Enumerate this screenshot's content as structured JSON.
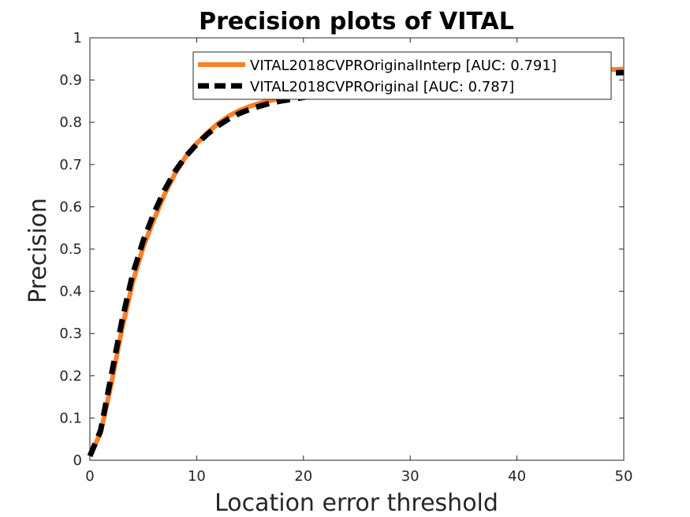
{
  "chart_data": {
    "type": "line",
    "title": "Precision plots of VITAL",
    "xlabel": "Location error threshold",
    "ylabel": "Precision",
    "xlim": [
      0,
      50
    ],
    "ylim": [
      0,
      1
    ],
    "xticks": [
      0,
      10,
      20,
      30,
      40,
      50
    ],
    "yticks": [
      0,
      0.1,
      0.2,
      0.3,
      0.4,
      0.5,
      0.6,
      0.7,
      0.8,
      0.9,
      1
    ],
    "xtick_labels": [
      "0",
      "10",
      "20",
      "30",
      "40",
      "50"
    ],
    "ytick_labels": [
      "0",
      "0.1",
      "0.2",
      "0.3",
      "0.4",
      "0.5",
      "0.6",
      "0.7",
      "0.8",
      "0.9",
      "1"
    ],
    "grid": false,
    "legend_position": "top-right",
    "x": [
      0,
      1,
      2,
      3,
      4,
      5,
      6,
      7,
      8,
      9,
      10,
      11,
      12,
      13,
      14,
      15,
      16,
      17,
      18,
      19,
      20,
      21,
      22,
      23,
      24,
      25,
      26,
      27,
      28,
      29,
      30,
      31,
      32,
      33,
      34,
      35,
      36,
      37,
      38,
      39,
      40,
      41,
      42,
      43,
      44,
      45,
      46,
      47,
      48,
      49,
      50
    ],
    "series": [
      {
        "name": "VITAL2018CVPROriginalInterp [AUC: 0.791]",
        "color": "#ff7f27",
        "style": "solid",
        "values": [
          0.01,
          0.065,
          0.18,
          0.31,
          0.42,
          0.505,
          0.57,
          0.63,
          0.68,
          0.72,
          0.75,
          0.775,
          0.797,
          0.815,
          0.828,
          0.838,
          0.846,
          0.852,
          0.857,
          0.861,
          0.865,
          0.869,
          0.872,
          0.875,
          0.878,
          0.881,
          0.884,
          0.886,
          0.888,
          0.89,
          0.892,
          0.894,
          0.896,
          0.898,
          0.9,
          0.902,
          0.904,
          0.906,
          0.908,
          0.91,
          0.911,
          0.913,
          0.914,
          0.916,
          0.917,
          0.919,
          0.92,
          0.922,
          0.923,
          0.925,
          0.926
        ]
      },
      {
        "name": "VITAL2018CVPROriginal [AUC: 0.787]",
        "color": "#000000",
        "style": "dashed",
        "values": [
          0.01,
          0.07,
          0.2,
          0.33,
          0.44,
          0.52,
          0.585,
          0.64,
          0.685,
          0.72,
          0.748,
          0.772,
          0.792,
          0.808,
          0.821,
          0.831,
          0.839,
          0.846,
          0.851,
          0.855,
          0.859,
          0.862,
          0.865,
          0.868,
          0.871,
          0.874,
          0.877,
          0.879,
          0.881,
          0.884,
          0.886,
          0.888,
          0.89,
          0.892,
          0.894,
          0.896,
          0.897,
          0.899,
          0.9,
          0.902,
          0.903,
          0.905,
          0.906,
          0.908,
          0.909,
          0.911,
          0.912,
          0.914,
          0.915,
          0.917,
          0.918
        ]
      }
    ]
  }
}
